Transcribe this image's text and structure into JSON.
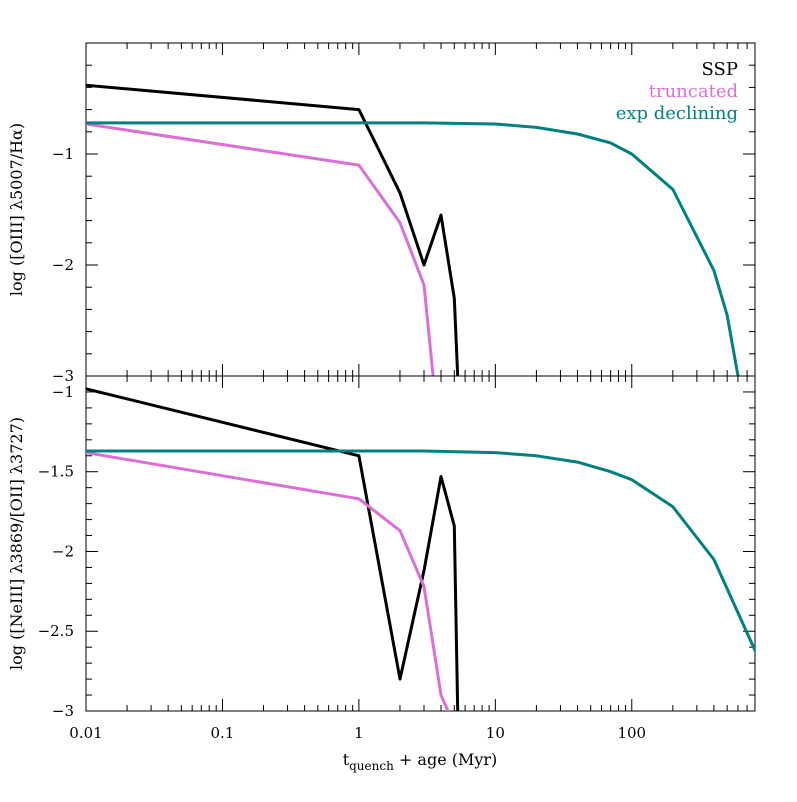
{
  "chart_data": [
    {
      "type": "line",
      "xscale": "log",
      "xlim": [
        0.01,
        800
      ],
      "ylim": [
        -3,
        0
      ],
      "yticks": [
        -1,
        -2,
        -3
      ],
      "ytick_labels": [
        "−1",
        "−2",
        "−3"
      ],
      "ylabel": "log ([OIII] λ5007/Hα)",
      "legend_position": "top-right",
      "series": [
        {
          "name": "SSP",
          "color": "#000000",
          "x": [
            0.01,
            1,
            2,
            3,
            4,
            5,
            5.3
          ],
          "y": [
            -0.38,
            -0.6,
            -1.35,
            -2.0,
            -1.55,
            -2.3,
            -3.0
          ]
        },
        {
          "name": "truncated",
          "color": "#da70d6",
          "x": [
            0.01,
            1,
            2,
            3,
            3.5
          ],
          "y": [
            -0.73,
            -1.1,
            -1.62,
            -2.18,
            -3.0
          ]
        },
        {
          "name": "exp declining",
          "color": "#008080",
          "x": [
            0.01,
            1,
            3,
            10,
            20,
            40,
            70,
            100,
            200,
            400,
            500,
            600
          ],
          "y": [
            -0.72,
            -0.72,
            -0.72,
            -0.73,
            -0.76,
            -0.82,
            -0.9,
            -1.0,
            -1.32,
            -2.05,
            -2.45,
            -3.0
          ]
        }
      ]
    },
    {
      "type": "line",
      "xscale": "log",
      "xlim": [
        0.01,
        800
      ],
      "ylim": [
        -3,
        -0.9
      ],
      "xticks": [
        0.01,
        0.1,
        1,
        10,
        100
      ],
      "xtick_labels": [
        "0.01",
        "0.1",
        "1",
        "10",
        "100"
      ],
      "yticks": [
        -1,
        -1.5,
        -2,
        -2.5,
        -3
      ],
      "ytick_labels": [
        "−1",
        "−1.5",
        "−2",
        "−2.5",
        "−3"
      ],
      "ylabel": "log ([NeIII] λ3869/[OII] λ3727)",
      "xlabel_main": "t",
      "xlabel_sub": "quench",
      "xlabel_rest": " + age (Myr)",
      "series": [
        {
          "name": "SSP",
          "color": "#000000",
          "x": [
            0.01,
            1,
            2,
            3,
            4,
            5,
            5.3
          ],
          "y": [
            -0.98,
            -1.4,
            -2.8,
            -2.12,
            -1.53,
            -1.84,
            -3.0
          ]
        },
        {
          "name": "truncated",
          "color": "#da70d6",
          "x": [
            0.01,
            1,
            2,
            3,
            4,
            4.5
          ],
          "y": [
            -1.38,
            -1.67,
            -1.87,
            -2.22,
            -2.9,
            -3.0
          ]
        },
        {
          "name": "exp declining",
          "color": "#008080",
          "x": [
            0.01,
            1,
            3,
            10,
            20,
            40,
            70,
            100,
            200,
            400,
            800
          ],
          "y": [
            -1.37,
            -1.37,
            -1.37,
            -1.38,
            -1.4,
            -1.44,
            -1.5,
            -1.55,
            -1.72,
            -2.05,
            -2.62
          ]
        }
      ]
    }
  ]
}
